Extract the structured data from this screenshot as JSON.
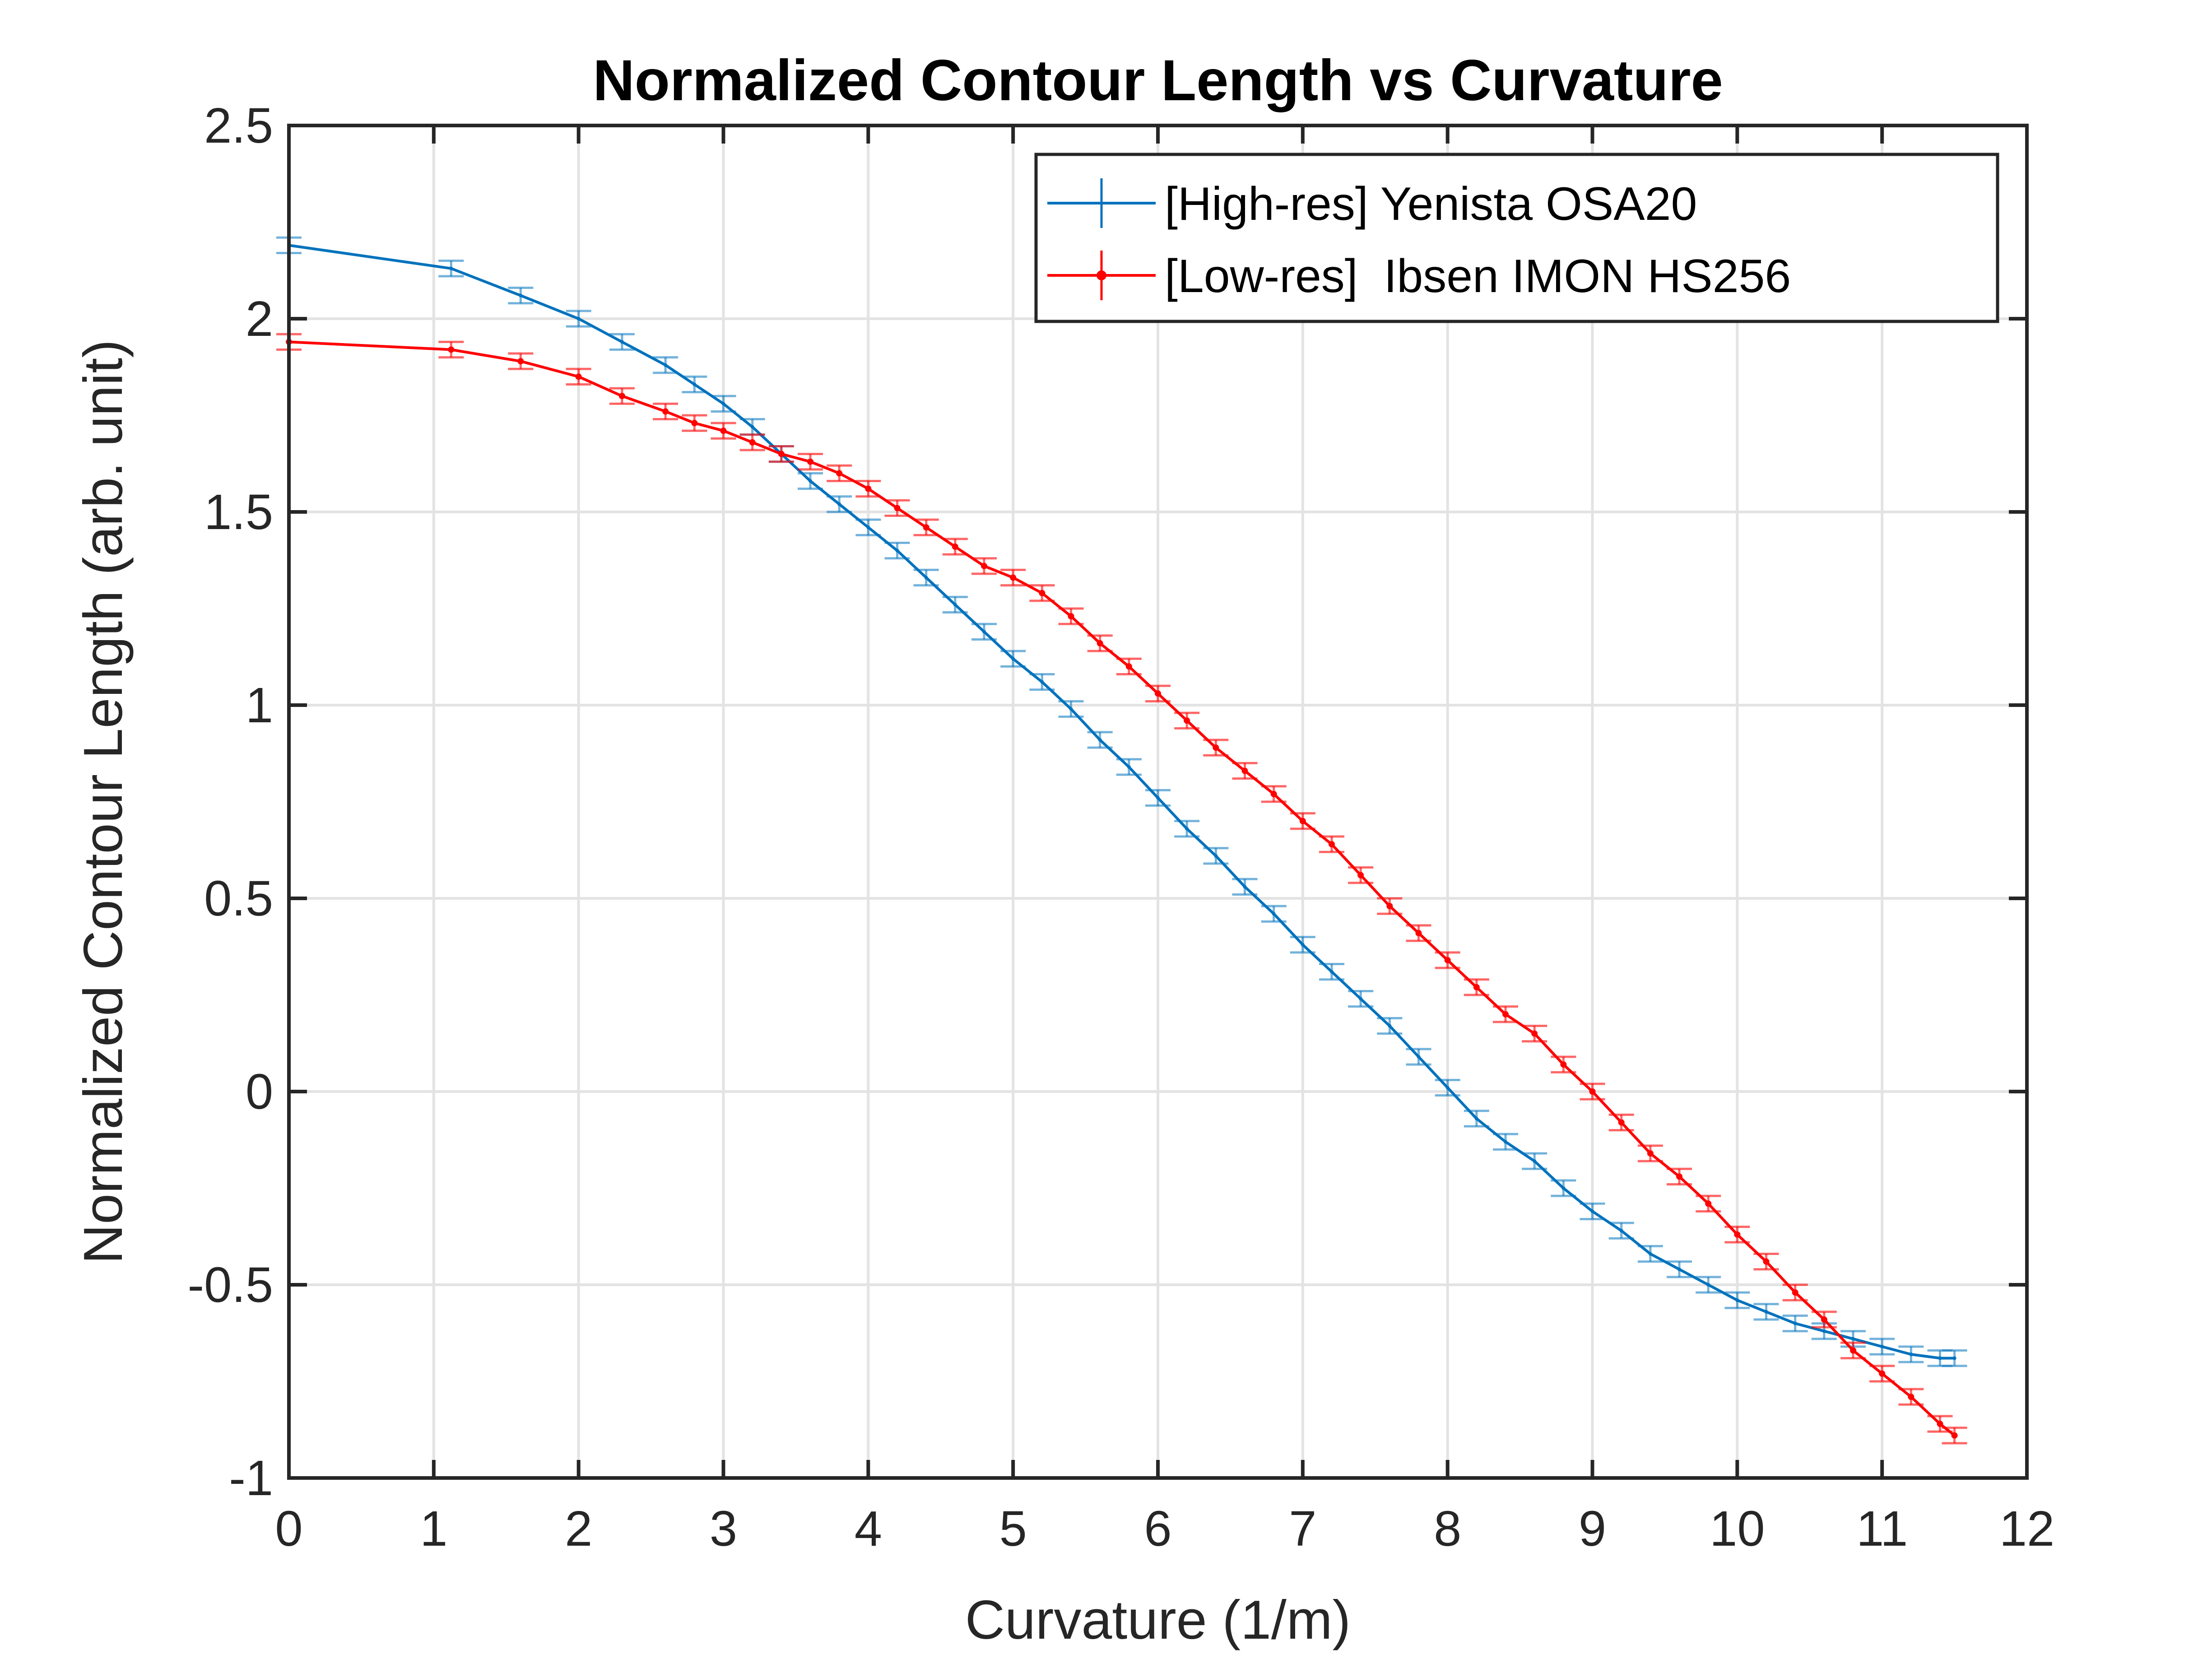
{
  "chart_data": {
    "type": "line",
    "title": "Normalized Contour Length vs Curvature",
    "xlabel": "Curvature (1/m)",
    "ylabel": "Normalized Contour Length (arb. unit)",
    "xlim": [
      0,
      12
    ],
    "ylim": [
      -1,
      2.5
    ],
    "xticks": [
      "0",
      "1",
      "2",
      "3",
      "4",
      "5",
      "6",
      "7",
      "8",
      "9",
      "10",
      "11",
      "12"
    ],
    "yticks": [
      "-1",
      "-0.5",
      "0",
      "0.5",
      "1",
      "1.5",
      "2",
      "2.5"
    ],
    "grid": true,
    "legend_position": "top-right",
    "error_bars": true,
    "series": [
      {
        "name": "[High-res] Yenista OSA20",
        "color": "#0072BD",
        "marker": "none",
        "x": [
          0,
          1.12,
          1.6,
          2.0,
          2.3,
          2.6,
          2.8,
          3.0,
          3.2,
          3.4,
          3.6,
          3.8,
          4.0,
          4.2,
          4.4,
          4.6,
          4.8,
          5.0,
          5.2,
          5.4,
          5.6,
          5.8,
          6.0,
          6.2,
          6.4,
          6.6,
          6.8,
          7.0,
          7.2,
          7.4,
          7.6,
          7.8,
          8.0,
          8.2,
          8.4,
          8.6,
          8.8,
          9.0,
          9.2,
          9.4,
          9.6,
          9.8,
          10.0,
          10.2,
          10.4,
          10.6,
          10.8,
          11.0,
          11.2,
          11.4,
          11.5
        ],
        "y": [
          2.19,
          2.13,
          2.06,
          2.0,
          1.94,
          1.88,
          1.83,
          1.78,
          1.72,
          1.65,
          1.58,
          1.52,
          1.46,
          1.4,
          1.33,
          1.26,
          1.19,
          1.12,
          1.06,
          0.99,
          0.91,
          0.84,
          0.76,
          0.68,
          0.61,
          0.53,
          0.46,
          0.38,
          0.31,
          0.24,
          0.17,
          0.09,
          0.01,
          -0.07,
          -0.13,
          -0.18,
          -0.25,
          -0.31,
          -0.36,
          -0.42,
          -0.46,
          -0.5,
          -0.54,
          -0.57,
          -0.6,
          -0.62,
          -0.64,
          -0.66,
          -0.68,
          -0.69,
          -0.69
        ],
        "error": 0.02
      },
      {
        "name": "[Low-res]  Ibsen IMON HS256",
        "color": "#FF0000",
        "marker": "dot",
        "x": [
          0,
          1.12,
          1.6,
          2.0,
          2.3,
          2.6,
          2.8,
          3.0,
          3.2,
          3.4,
          3.6,
          3.8,
          4.0,
          4.2,
          4.4,
          4.6,
          4.8,
          5.0,
          5.2,
          5.4,
          5.6,
          5.8,
          6.0,
          6.2,
          6.4,
          6.6,
          6.8,
          7.0,
          7.2,
          7.4,
          7.6,
          7.8,
          8.0,
          8.2,
          8.4,
          8.6,
          8.8,
          9.0,
          9.2,
          9.4,
          9.6,
          9.8,
          10.0,
          10.2,
          10.4,
          10.6,
          10.8,
          11.0,
          11.2,
          11.4,
          11.5
        ],
        "y": [
          1.94,
          1.92,
          1.89,
          1.85,
          1.8,
          1.76,
          1.73,
          1.71,
          1.68,
          1.65,
          1.63,
          1.6,
          1.56,
          1.51,
          1.46,
          1.41,
          1.36,
          1.33,
          1.29,
          1.23,
          1.16,
          1.1,
          1.03,
          0.96,
          0.89,
          0.83,
          0.77,
          0.7,
          0.64,
          0.56,
          0.48,
          0.41,
          0.34,
          0.27,
          0.2,
          0.15,
          0.07,
          0.0,
          -0.08,
          -0.16,
          -0.22,
          -0.29,
          -0.37,
          -0.44,
          -0.52,
          -0.59,
          -0.67,
          -0.73,
          -0.79,
          -0.86,
          -0.89
        ],
        "error": 0.02
      }
    ]
  }
}
